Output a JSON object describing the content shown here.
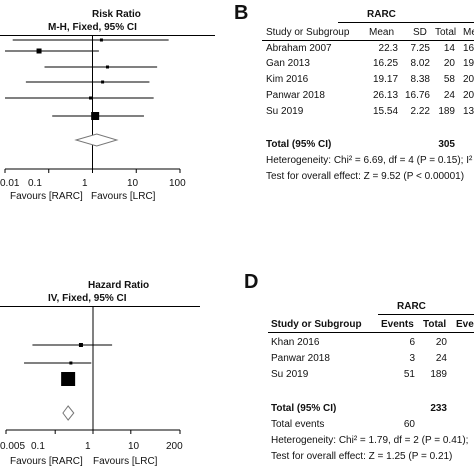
{
  "panel_a": {
    "title": "Risk Ratio",
    "subtitle": "M-H, Fixed, 95% CI",
    "ticks": [
      "0.01",
      "0.1",
      "1",
      "10",
      "100"
    ],
    "favours_left": "Favours [RARC]",
    "favours_right": "Favours [LRC]"
  },
  "panel_b": {
    "letter": "B",
    "group_header": "RARC",
    "columns": [
      "Study or Subgroup",
      "Mean",
      "SD",
      "Total",
      "Me"
    ],
    "rows": [
      {
        "study": "Abraham 2007",
        "mean": "22.3",
        "sd": "7.25",
        "total": "14",
        "next": "16"
      },
      {
        "study": "Gan 2013",
        "mean": "16.25",
        "sd": "8.02",
        "total": "20",
        "next": "19"
      },
      {
        "study": "Kim 2016",
        "mean": "19.17",
        "sd": "8.38",
        "total": "58",
        "next": "20"
      },
      {
        "study": "Panwar 2018",
        "mean": "26.13",
        "sd": "16.76",
        "total": "24",
        "next": "20"
      },
      {
        "study": "Su 2019",
        "mean": "15.54",
        "sd": "2.22",
        "total": "189",
        "next": "13"
      }
    ],
    "total_label": "Total (95% CI)",
    "total_value": "305",
    "heterogeneity": "Heterogeneity: Chi² = 6.69, df = 4 (P = 0.15); I²",
    "overall_effect": "Test for overall effect: Z = 9.52 (P < 0.00001)"
  },
  "panel_c": {
    "title": "Hazard Ratio",
    "subtitle": "IV, Fixed, 95% CI",
    "ticks": [
      "0.005",
      "0.1",
      "1",
      "10",
      "200"
    ],
    "favours_left": "Favours [RARC]",
    "favours_right": "Favours [LRC]"
  },
  "panel_d": {
    "letter": "D",
    "group_header": "RARC",
    "columns": [
      "Study or Subgroup",
      "Events",
      "Total",
      "Eve"
    ],
    "rows": [
      {
        "study": "Khan 2016",
        "events": "6",
        "total": "20"
      },
      {
        "study": "Panwar 2018",
        "events": "3",
        "total": "24"
      },
      {
        "study": "Su 2019",
        "events": "51",
        "total": "189"
      }
    ],
    "total_label": "Total (95% CI)",
    "total_value": "233",
    "total_events_label": "Total events",
    "total_events_value": "60",
    "heterogeneity": "Heterogeneity: Chi² = 1.79, df = 2 (P = 0.41);",
    "overall_effect": "Test for overall effect: Z = 1.25 (P = 0.21)"
  },
  "chart_data": [
    {
      "type": "scatter",
      "title": "Risk Ratio",
      "subtitle": "M-H, Fixed, 95% CI",
      "xscale": "log",
      "xlim": [
        0.01,
        100
      ],
      "ticks": [
        0.01,
        0.1,
        1,
        10,
        100
      ],
      "points": [
        {
          "est": 1.6,
          "lo": 0.015,
          "hi": 55
        },
        {
          "est": 0.06,
          "lo": 0.007,
          "hi": 1.4
        },
        {
          "est": 2.2,
          "lo": 0.08,
          "hi": 30
        },
        {
          "est": 1.7,
          "lo": 0.03,
          "hi": 20
        },
        {
          "est": 0.9,
          "lo": 0.01,
          "hi": 25
        },
        {
          "est": 1.15,
          "lo": 0.12,
          "hi": 15
        }
      ],
      "diamond": {
        "est": 1.25,
        "lo": 0.42,
        "hi": 3.6
      }
    },
    {
      "type": "scatter",
      "title": "Hazard Ratio",
      "subtitle": "IV, Fixed, 95% CI",
      "xscale": "log",
      "xlim": [
        0.005,
        200
      ],
      "ticks": [
        0.005,
        0.1,
        1,
        10,
        200
      ],
      "points": [
        {
          "est": 0.48,
          "lo": 0.025,
          "hi": 3.2
        },
        {
          "est": 0.26,
          "lo": 0.015,
          "hi": 0.9
        },
        {
          "est": 0.22,
          "lo": 0.16,
          "hi": 0.31
        }
      ],
      "diamond": {
        "est": 0.22,
        "lo": 0.16,
        "hi": 0.31
      }
    }
  ]
}
